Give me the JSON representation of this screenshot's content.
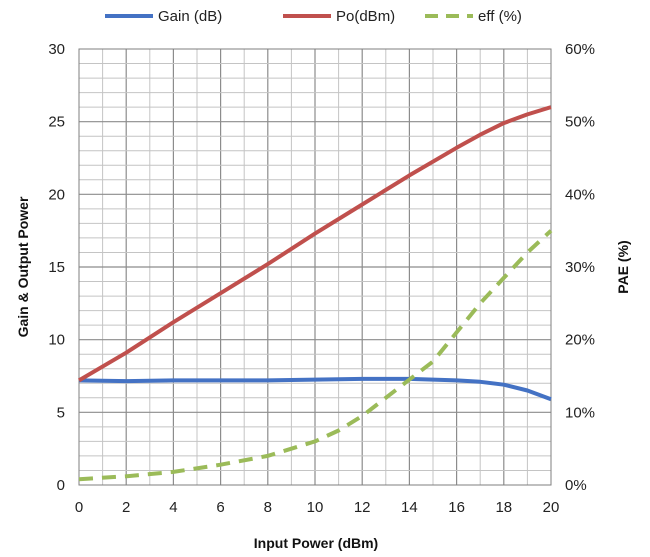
{
  "chart_data": {
    "type": "line",
    "xlabel": "Input Power (dBm)",
    "ylabel": "Gain & Output Power",
    "y2label": "PAE (%)",
    "xlim": [
      0,
      20
    ],
    "ylim": [
      0,
      30
    ],
    "y2lim": [
      0,
      60
    ],
    "xticks": [
      "0",
      "2",
      "4",
      "6",
      "8",
      "10",
      "12",
      "14",
      "16",
      "18",
      "20"
    ],
    "yticks": [
      "0",
      "5",
      "10",
      "15",
      "20",
      "25",
      "30"
    ],
    "y2ticks": [
      "0%",
      "10%",
      "20%",
      "30%",
      "40%",
      "50%",
      "60%"
    ],
    "grid": true,
    "legend_position": "top",
    "series": [
      {
        "name": "Gain (dB)",
        "axis": "left",
        "color": "#4472C4",
        "dash": "solid",
        "x": [
          0,
          2,
          4,
          6,
          8,
          10,
          12,
          14,
          15,
          16,
          17,
          18,
          19,
          20
        ],
        "y": [
          7.2,
          7.15,
          7.2,
          7.2,
          7.2,
          7.25,
          7.3,
          7.3,
          7.25,
          7.2,
          7.1,
          6.9,
          6.5,
          5.9
        ]
      },
      {
        "name": "Po(dBm)",
        "axis": "left",
        "color": "#C0504D",
        "dash": "solid",
        "x": [
          0,
          2,
          4,
          6,
          8,
          10,
          12,
          14,
          16,
          17,
          18,
          19,
          20
        ],
        "y": [
          7.2,
          9.1,
          11.2,
          13.2,
          15.2,
          17.3,
          19.3,
          21.3,
          23.2,
          24.1,
          24.9,
          25.5,
          26.0
        ]
      },
      {
        "name": "eff (%)",
        "axis": "right",
        "color": "#9BBB59",
        "dash": "dashed",
        "x": [
          0,
          2,
          4,
          6,
          8,
          10,
          11,
          12,
          13,
          14,
          15,
          16,
          17,
          18,
          19,
          20
        ],
        "y": [
          0.8,
          1.2,
          1.8,
          2.8,
          4.0,
          6.0,
          7.5,
          9.5,
          12.0,
          14.5,
          17.0,
          21.0,
          25.0,
          28.5,
          32.0,
          35.0
        ]
      }
    ]
  }
}
